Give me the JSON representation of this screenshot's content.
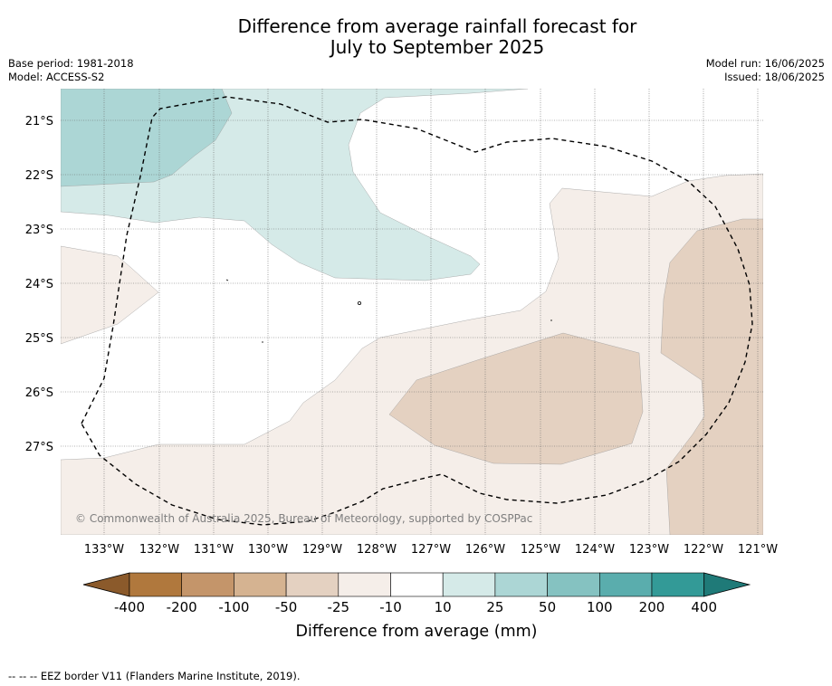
{
  "title": {
    "line1": "Difference from average rainfall forecast for",
    "line2": "July to September 2025"
  },
  "meta": {
    "base_period": "Base period: 1981-2018",
    "model": "Model: ACCESS-S2",
    "model_run": "Model run: 16/06/2025",
    "issued": "Issued: 18/06/2025"
  },
  "map": {
    "lat_labels": [
      "21°S",
      "22°S",
      "23°S",
      "24°S",
      "25°S",
      "26°S",
      "27°S"
    ],
    "lon_labels": [
      "133°W",
      "132°W",
      "131°W",
      "130°W",
      "129°W",
      "128°W",
      "127°W",
      "126°W",
      "125°W",
      "124°W",
      "123°W",
      "122°W",
      "121°W"
    ],
    "copyright": "© Commonwealth of Australia 2025, Bureau of Meteorology, supported by COSPPac",
    "colors": {
      "wet_10_25": "#d5eae8",
      "wet_25_50": "#acd6d5",
      "dry_10_25": "#f5eee9",
      "dry_25_50": "#e4d1c1"
    }
  },
  "colorbar": {
    "ticks": [
      "-400",
      "-200",
      "-100",
      "-50",
      "-25",
      "-10",
      "10",
      "25",
      "50",
      "100",
      "200",
      "400"
    ],
    "colors": [
      "#8b5a2b",
      "#b0783d",
      "#c4956a",
      "#d5b391",
      "#e4d1c1",
      "#f5eee9",
      "#ffffff",
      "#d5eae8",
      "#acd6d5",
      "#85c2c1",
      "#5aadad",
      "#339a97",
      "#1f7a78"
    ],
    "label": "Difference from average (mm)"
  },
  "footnote": "--  --  -- EEZ border V11 (Flanders Marine Institute, 2019)."
}
